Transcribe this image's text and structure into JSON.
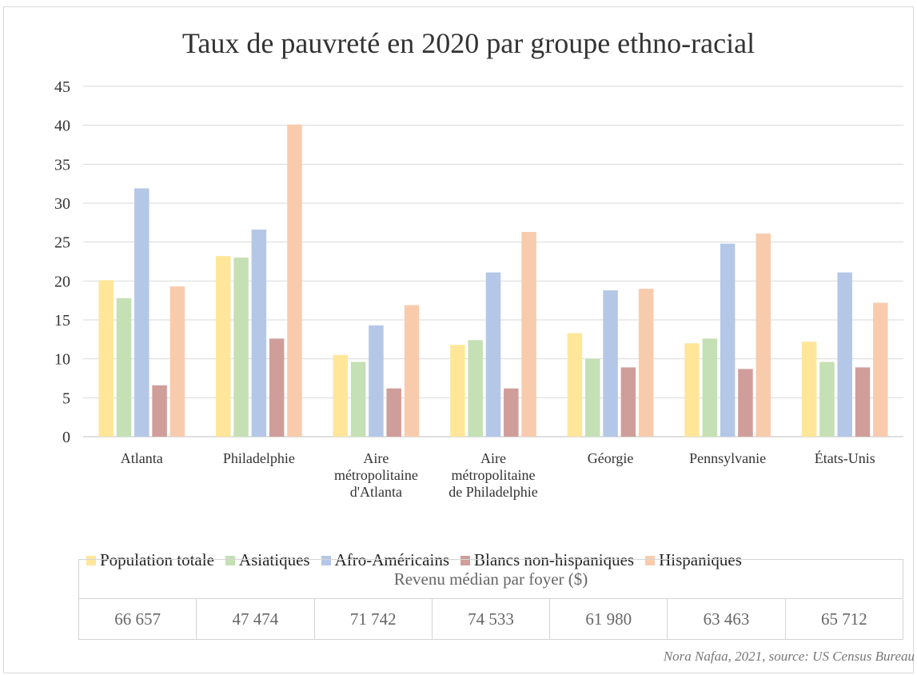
{
  "chart_data": {
    "type": "bar",
    "title": "Taux de pauvreté en 2020 par groupe ethno-racial",
    "xlabel": "",
    "ylabel": "",
    "ylim": [
      0,
      45
    ],
    "ytick_values": [
      0,
      5,
      10,
      15,
      20,
      25,
      30,
      35,
      40,
      45
    ],
    "grid": true,
    "legend_position": "bottom",
    "categories": [
      [
        "Atlanta"
      ],
      [
        "Philadelphie"
      ],
      [
        "Aire",
        "métropolitaine",
        "d'Atlanta"
      ],
      [
        "Aire",
        "métropolitaine",
        "de Philadelphie"
      ],
      [
        "Géorgie"
      ],
      [
        "Pennsylvanie"
      ],
      [
        "États-Unis"
      ]
    ],
    "series": [
      {
        "name": "Population totale",
        "color": "#ffe699",
        "values": [
          20.1,
          23.2,
          10.5,
          11.8,
          13.3,
          12.0,
          12.2
        ]
      },
      {
        "name": "Asiatiques",
        "color": "#c5e0b4",
        "values": [
          17.8,
          23.0,
          9.6,
          12.4,
          10.0,
          12.6,
          9.6
        ]
      },
      {
        "name": "Afro-Américains",
        "color": "#b4c7e7",
        "values": [
          31.9,
          26.6,
          14.3,
          21.1,
          18.8,
          24.8,
          21.1
        ]
      },
      {
        "name": "Blancs non-hispaniques",
        "color": "#d09e9a",
        "values": [
          6.6,
          12.6,
          6.2,
          6.2,
          8.9,
          8.7,
          8.9
        ]
      },
      {
        "name": "Hispaniques",
        "color": "#f8cbad",
        "values": [
          19.3,
          40.1,
          16.9,
          26.3,
          19.0,
          26.1,
          17.2
        ]
      }
    ]
  },
  "revenue_table": {
    "header": "Revenu médian par foyer ($)",
    "values": [
      "66 657",
      "47 474",
      "71 742",
      "74 533",
      "61 980",
      "63 463",
      "65 712"
    ]
  },
  "source": "Nora Nafaa, 2021, source: US Census Bureau"
}
